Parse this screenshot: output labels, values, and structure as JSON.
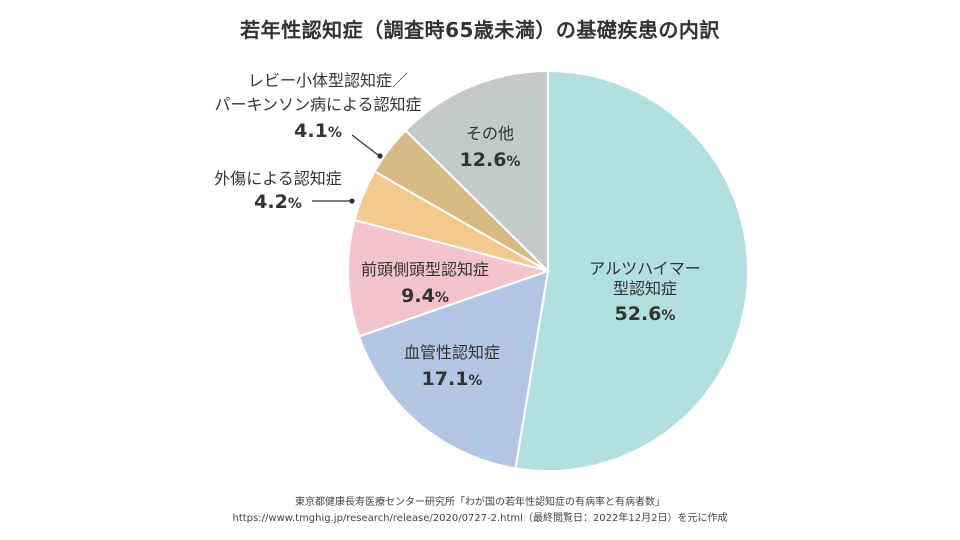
{
  "chart_data": {
    "type": "pie",
    "title": "若年性認知症（調査時65歳未満）の基礎疾患の内訳",
    "unit": "%",
    "slices": [
      {
        "label": "アルツハイマー型認知症",
        "value": 52.6,
        "value_text": "52.6",
        "color": "#b2dfdf"
      },
      {
        "label": "血管性認知症",
        "value": 17.1,
        "value_text": "17.1",
        "color": "#b3c7e5"
      },
      {
        "label": "前頭側頭型認知症",
        "value": 9.4,
        "value_text": "9.4",
        "color": "#f4c4cd"
      },
      {
        "label": "外傷による認知症",
        "value": 4.2,
        "value_text": "4.2",
        "color": "#f3c98e"
      },
      {
        "label": "レビー小体型認知症／パーキンソン病による認知症",
        "value": 4.1,
        "value_text": "4.1",
        "color": "#d8bb84"
      },
      {
        "label": "その他",
        "value": 12.6,
        "value_text": "12.6",
        "color": "#c5c9c8"
      }
    ]
  },
  "source": {
    "line1": "東京都健康長寿医療センター研究所「わが国の若年性認知症の有病率と有病者数」",
    "line2": "https://www.tmghig.jp/research/release/2020/0727-2.html（最終閲覧日：2022年12月2日）を元に作成"
  }
}
